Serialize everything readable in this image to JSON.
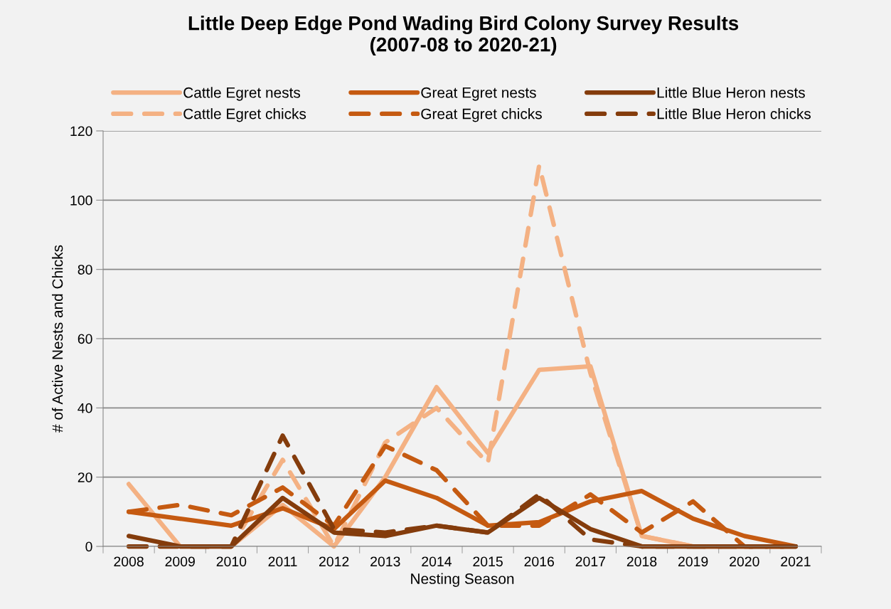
{
  "chart_data": {
    "type": "line",
    "title": "Little Deep Edge Pond Wading Bird Colony Survey Results\n(2007-08 to 2020-21)",
    "xlabel": "Nesting Season",
    "ylabel": "# of Active Nests and Chicks",
    "categories": [
      "2008",
      "2009",
      "2010",
      "2011",
      "2012",
      "2013",
      "2014",
      "2015",
      "2016",
      "2017",
      "2018",
      "2019",
      "2020",
      "2021"
    ],
    "series": [
      {
        "name": "Cattle Egret nests",
        "color": "#f4b183",
        "line_style": "solid",
        "values": [
          18,
          0,
          0,
          12,
          0,
          20,
          46,
          27,
          51,
          52,
          3,
          0,
          0,
          0
        ]
      },
      {
        "name": "Cattle Egret chicks",
        "color": "#f4b183",
        "line_style": "dashed",
        "values": [
          0,
          0,
          0,
          25,
          0,
          30,
          40,
          24,
          110,
          50,
          3,
          0,
          0,
          0
        ]
      },
      {
        "name": "Great Egret nests",
        "color": "#c55a11",
        "line_style": "solid",
        "values": [
          10,
          8,
          6,
          11,
          5,
          19,
          14,
          6,
          7,
          13,
          16,
          8,
          3,
          0
        ]
      },
      {
        "name": "Great Egret chicks",
        "color": "#c55a11",
        "line_style": "dashed",
        "values": [
          10,
          12,
          9,
          17,
          6,
          29,
          22,
          6,
          6,
          15,
          4,
          13,
          0,
          0
        ]
      },
      {
        "name": "Little Blue Heron nests",
        "color": "#843c0c",
        "line_style": "solid",
        "values": [
          3,
          0,
          0,
          14,
          4,
          3,
          6,
          4,
          14,
          5,
          0,
          0,
          0,
          0
        ]
      },
      {
        "name": "Little Blue Heron chicks",
        "color": "#843c0c",
        "line_style": "dashed",
        "values": [
          0,
          0,
          0,
          32,
          5,
          4,
          6,
          4,
          15,
          2,
          0,
          0,
          0,
          0
        ]
      }
    ],
    "ylim": [
      0,
      120
    ],
    "yticks": [
      0,
      20,
      40,
      60,
      80,
      100,
      120
    ],
    "grid": "y",
    "legend": "top",
    "marker": "none"
  }
}
